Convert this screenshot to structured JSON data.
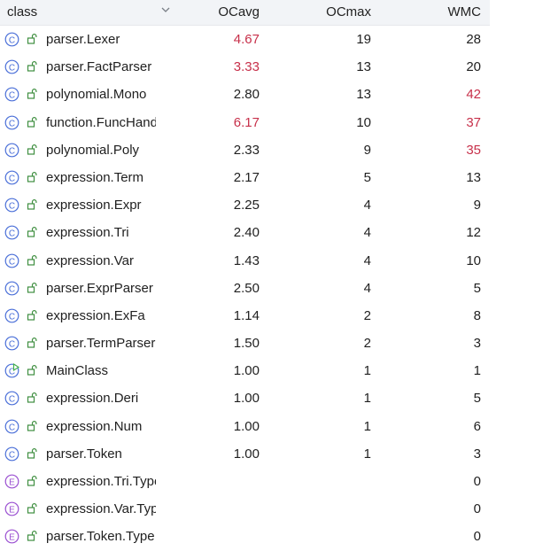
{
  "header": {
    "class_label": "class",
    "ocavg_label": "OCavg",
    "ocmax_label": "OCmax",
    "wmc_label": "WMC"
  },
  "colors": {
    "class_icon": "#4a6fd8",
    "enum_icon": "#9a4fd1",
    "main_icon_accent": "#3fae4a",
    "lock": "#3e8e3f",
    "hot_value": "#c7304a",
    "header_bg": "#f2f4f7"
  },
  "rows": [
    {
      "kind": "class",
      "name": "parser.Lexer",
      "ocavg": "4.67",
      "ocmax": "19",
      "wmc": "28",
      "ocavg_hot": true,
      "wmc_hot": false
    },
    {
      "kind": "class",
      "name": "parser.FactParser",
      "ocavg": "3.33",
      "ocmax": "13",
      "wmc": "20",
      "ocavg_hot": true,
      "wmc_hot": false
    },
    {
      "kind": "class",
      "name": "polynomial.Mono",
      "ocavg": "2.80",
      "ocmax": "13",
      "wmc": "42",
      "ocavg_hot": false,
      "wmc_hot": true
    },
    {
      "kind": "class",
      "name": "function.FuncHandler",
      "ocavg": "6.17",
      "ocmax": "10",
      "wmc": "37",
      "ocavg_hot": true,
      "wmc_hot": true
    },
    {
      "kind": "class",
      "name": "polynomial.Poly",
      "ocavg": "2.33",
      "ocmax": "9",
      "wmc": "35",
      "ocavg_hot": false,
      "wmc_hot": true
    },
    {
      "kind": "class",
      "name": "expression.Term",
      "ocavg": "2.17",
      "ocmax": "5",
      "wmc": "13",
      "ocavg_hot": false,
      "wmc_hot": false
    },
    {
      "kind": "class",
      "name": "expression.Expr",
      "ocavg": "2.25",
      "ocmax": "4",
      "wmc": "9",
      "ocavg_hot": false,
      "wmc_hot": false
    },
    {
      "kind": "class",
      "name": "expression.Tri",
      "ocavg": "2.40",
      "ocmax": "4",
      "wmc": "12",
      "ocavg_hot": false,
      "wmc_hot": false
    },
    {
      "kind": "class",
      "name": "expression.Var",
      "ocavg": "1.43",
      "ocmax": "4",
      "wmc": "10",
      "ocavg_hot": false,
      "wmc_hot": false
    },
    {
      "kind": "class",
      "name": "parser.ExprParser",
      "ocavg": "2.50",
      "ocmax": "4",
      "wmc": "5",
      "ocavg_hot": false,
      "wmc_hot": false
    },
    {
      "kind": "class",
      "name": "expression.ExFa",
      "ocavg": "1.14",
      "ocmax": "2",
      "wmc": "8",
      "ocavg_hot": false,
      "wmc_hot": false
    },
    {
      "kind": "class",
      "name": "parser.TermParser",
      "ocavg": "1.50",
      "ocmax": "2",
      "wmc": "3",
      "ocavg_hot": false,
      "wmc_hot": false
    },
    {
      "kind": "main",
      "name": "MainClass",
      "ocavg": "1.00",
      "ocmax": "1",
      "wmc": "1",
      "ocavg_hot": false,
      "wmc_hot": false
    },
    {
      "kind": "class",
      "name": "expression.Deri",
      "ocavg": "1.00",
      "ocmax": "1",
      "wmc": "5",
      "ocavg_hot": false,
      "wmc_hot": false
    },
    {
      "kind": "class",
      "name": "expression.Num",
      "ocavg": "1.00",
      "ocmax": "1",
      "wmc": "6",
      "ocavg_hot": false,
      "wmc_hot": false
    },
    {
      "kind": "class",
      "name": "parser.Token",
      "ocavg": "1.00",
      "ocmax": "1",
      "wmc": "3",
      "ocavg_hot": false,
      "wmc_hot": false
    },
    {
      "kind": "enum",
      "name": "expression.Tri.Type",
      "ocavg": "",
      "ocmax": "",
      "wmc": "0",
      "ocavg_hot": false,
      "wmc_hot": false
    },
    {
      "kind": "enum",
      "name": "expression.Var.Type",
      "ocavg": "",
      "ocmax": "",
      "wmc": "0",
      "ocavg_hot": false,
      "wmc_hot": false
    },
    {
      "kind": "enum",
      "name": "parser.Token.Type",
      "ocavg": "",
      "ocmax": "",
      "wmc": "0",
      "ocavg_hot": false,
      "wmc_hot": false
    }
  ]
}
